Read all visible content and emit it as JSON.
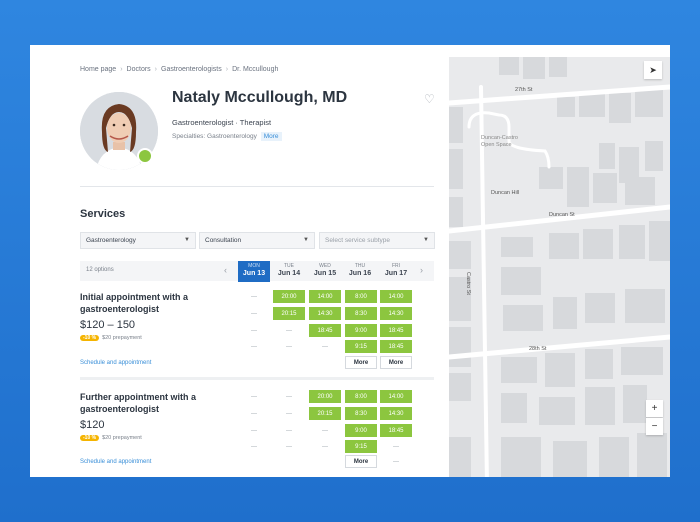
{
  "breadcrumbs": [
    "Home page",
    "Doctors",
    "Gastroenterologists",
    "Dr. Mccullough"
  ],
  "doctor": {
    "name": "Nataly Mccullough, MD",
    "subtitle": "Gastroenterologist · Therapist",
    "specialties_label": "Specialties: Gastroenterology",
    "more": "More"
  },
  "services": {
    "title": "Services",
    "filters": {
      "specialty": "Gastroenterology",
      "type": "Consultation",
      "subtype_placeholder": "Select service subtype"
    },
    "options_count": "12 options",
    "days": [
      {
        "name": "MON",
        "date": "Jun 13",
        "active": true
      },
      {
        "name": "TUE",
        "date": "Jun 14"
      },
      {
        "name": "WED",
        "date": "Jun 15"
      },
      {
        "name": "THU",
        "date": "Jun 16"
      },
      {
        "name": "FRI",
        "date": "Jun 17"
      }
    ],
    "items": [
      {
        "title": "Initial appointment with a gastroenterologist",
        "price": "$120 – 150",
        "discount": "-10 %",
        "prepayment": "$20 prepayment",
        "link": "Schedule and appointment",
        "slots": [
          [
            "—",
            "—",
            "—",
            "—"
          ],
          [
            "20:00",
            "20:15",
            "—",
            "—"
          ],
          [
            "14:00",
            "14:30",
            "18:45",
            "—"
          ],
          [
            "8:00",
            "8:30",
            "9:00",
            "9:15",
            "More"
          ],
          [
            "14:00",
            "14:30",
            "18:45",
            "18:45",
            "More"
          ]
        ]
      },
      {
        "title": "Further appointment with a gastroenterologist",
        "price": "$120",
        "discount": "-10 %",
        "prepayment": "$20 prepayment",
        "link": "Schedule and appointment",
        "slots": [
          [
            "—",
            "—",
            "—",
            "—"
          ],
          [
            "—",
            "—",
            "—",
            "—"
          ],
          [
            "20:00",
            "20:15",
            "—",
            "—"
          ],
          [
            "8:00",
            "8:30",
            "9:00",
            "9:15",
            "More"
          ],
          [
            "14:00",
            "14:30",
            "18:45",
            "—",
            "—"
          ]
        ]
      }
    ]
  },
  "map": {
    "streets": [
      "27th St",
      "Duncan-Castro Open Space",
      "Duncan Hill",
      "Duncan St",
      "Castro St",
      "28th St"
    ],
    "zoom_in": "+",
    "zoom_out": "−"
  }
}
